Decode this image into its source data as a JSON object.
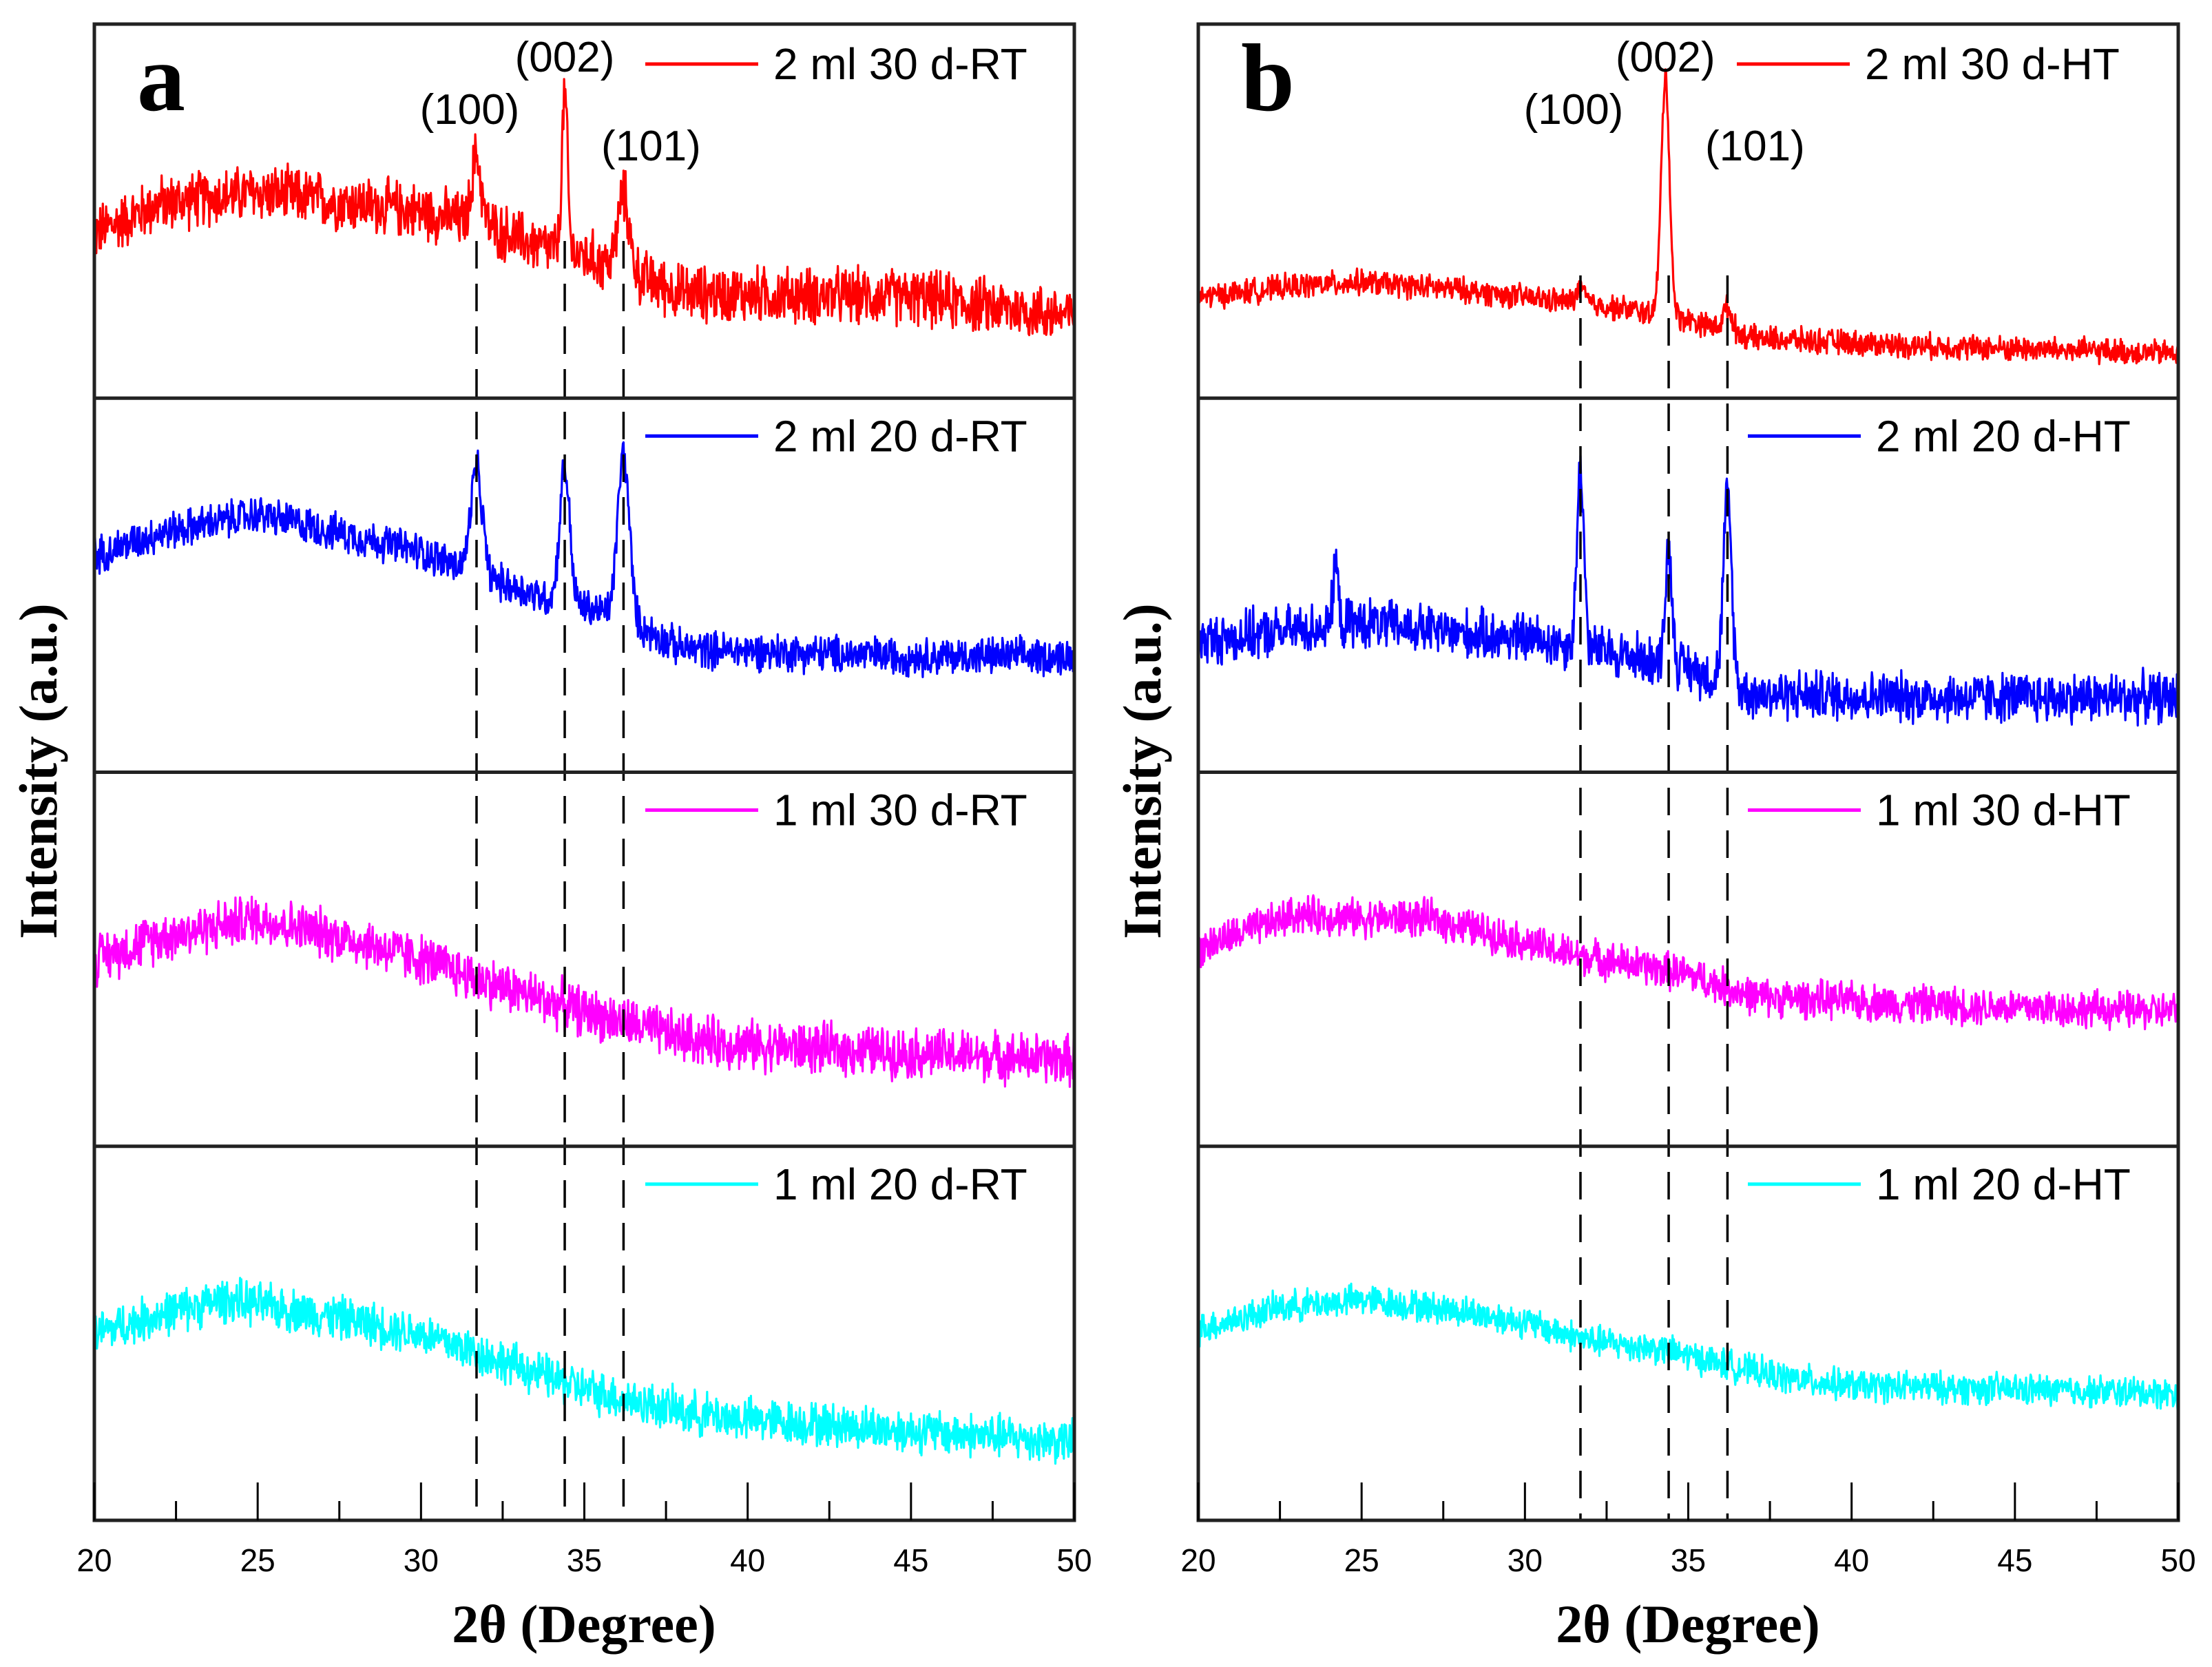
{
  "chart_data": {
    "type": "line",
    "ylabel": "Intensity (a.u.)",
    "xlabel": "2θ (Degree)",
    "xlim": [
      20,
      50
    ],
    "xticks": [
      "20",
      "25",
      "30",
      "35",
      "40",
      "45",
      "50"
    ],
    "ylim_per_strip": [
      0,
      100
    ],
    "grid": false,
    "reference_lines": [
      31.7,
      34.4,
      36.2
    ],
    "panels": [
      {
        "letter": "a",
        "peak_labels": [
          {
            "text": "(100)",
            "x": 31.7
          },
          {
            "text": "(002)",
            "x": 34.4
          },
          {
            "text": "(101)",
            "x": 36.2
          }
        ],
        "series": [
          {
            "name": "2 ml 30 d-RT",
            "color": "#ff0000",
            "noise": 9,
            "baseline": [
              [
                20,
                44
              ],
              [
                22,
                52
              ],
              [
                25,
                55
              ],
              [
                28,
                52
              ],
              [
                30,
                50
              ],
              [
                32,
                46
              ],
              [
                33.5,
                41
              ],
              [
                35,
                38
              ],
              [
                36.8,
                32
              ],
              [
                38,
                28
              ],
              [
                45,
                27
              ],
              [
                50,
                22
              ]
            ],
            "peaks": [
              {
                "x": 31.7,
                "height": 18,
                "width": 0.2
              },
              {
                "x": 34.4,
                "height": 42,
                "width": 0.12
              },
              {
                "x": 36.2,
                "height": 20,
                "width": 0.25
              }
            ]
          },
          {
            "name": "2 ml 20 d-RT",
            "color": "#0000ff",
            "noise": 6,
            "baseline": [
              [
                20,
                58
              ],
              [
                22,
                64
              ],
              [
                25,
                69
              ],
              [
                28,
                63
              ],
              [
                30,
                59
              ],
              [
                32,
                52
              ],
              [
                34,
                46
              ],
              [
                36,
                42
              ],
              [
                38,
                33
              ],
              [
                45,
                31
              ],
              [
                50,
                31
              ]
            ],
            "peaks": [
              {
                "x": 31.7,
                "height": 28,
                "width": 0.25
              },
              {
                "x": 34.4,
                "height": 36,
                "width": 0.22
              },
              {
                "x": 36.2,
                "height": 44,
                "width": 0.25
              }
            ]
          },
          {
            "name": "1 ml 30 d-RT",
            "color": "#ff00ff",
            "noise": 8,
            "baseline": [
              [
                20,
                50
              ],
              [
                22,
                56
              ],
              [
                25,
                61
              ],
              [
                28,
                55
              ],
              [
                30,
                50
              ],
              [
                32,
                44
              ],
              [
                35,
                36
              ],
              [
                38,
                29
              ],
              [
                40,
                27
              ],
              [
                45,
                25
              ],
              [
                50,
                23
              ]
            ],
            "peaks": []
          },
          {
            "name": "1 ml 20 d-RT",
            "color": "#00ffff",
            "noise": 7,
            "baseline": [
              [
                20,
                50
              ],
              [
                22,
                55
              ],
              [
                24,
                59
              ],
              [
                27,
                55
              ],
              [
                30,
                50
              ],
              [
                32,
                44
              ],
              [
                35,
                35
              ],
              [
                38,
                29
              ],
              [
                40,
                27
              ],
              [
                45,
                24
              ],
              [
                50,
                21
              ]
            ],
            "peaks": []
          }
        ]
      },
      {
        "letter": "b",
        "peak_labels": [
          {
            "text": "(100)",
            "x": 31.7
          },
          {
            "text": "(002)",
            "x": 34.3
          },
          {
            "text": "(101)",
            "x": 36.2
          }
        ],
        "series": [
          {
            "name": "2 ml 30 d-HT",
            "color": "#ff0000",
            "noise": 4,
            "baseline": [
              [
                20,
                27
              ],
              [
                23,
                30
              ],
              [
                25,
                31
              ],
              [
                28,
                29
              ],
              [
                30,
                27
              ],
              [
                33,
                24
              ],
              [
                35,
                21
              ],
              [
                37,
                16
              ],
              [
                42,
                14
              ],
              [
                50,
                12
              ]
            ],
            "peaks": [
              {
                "x": 31.7,
                "height": 4,
                "width": 0.2
              },
              {
                "x": 34.3,
                "height": 64,
                "width": 0.18
              },
              {
                "x": 36.2,
                "height": 6,
                "width": 0.2
              }
            ]
          },
          {
            "name": "2 ml 20 d-HT",
            "color": "#0000ff",
            "noise": 8,
            "baseline": [
              [
                20,
                35
              ],
              [
                23,
                38
              ],
              [
                25,
                40
              ],
              [
                28,
                37
              ],
              [
                30,
                36
              ],
              [
                32,
                33
              ],
              [
                35,
                28
              ],
              [
                37,
                21
              ],
              [
                42,
                20
              ],
              [
                50,
                20
              ]
            ],
            "peaks": [
              {
                "x": 24.2,
                "height": 18,
                "width": 0.1
              },
              {
                "x": 31.7,
                "height": 48,
                "width": 0.15
              },
              {
                "x": 34.4,
                "height": 30,
                "width": 0.15
              },
              {
                "x": 36.2,
                "height": 50,
                "width": 0.18
              }
            ]
          },
          {
            "name": "1 ml 30 d-HT",
            "color": "#ff00ff",
            "noise": 6,
            "baseline": [
              [
                20,
                53
              ],
              [
                23,
                62
              ],
              [
                25,
                61
              ],
              [
                27,
                61
              ],
              [
                29,
                57
              ],
              [
                31,
                52
              ],
              [
                33,
                49
              ],
              [
                35,
                46
              ],
              [
                37,
                40
              ],
              [
                42,
                38
              ],
              [
                50,
                36
              ]
            ],
            "peaks": []
          },
          {
            "name": "1 ml 20 d-HT",
            "color": "#00ffff",
            "noise": 5,
            "baseline": [
              [
                20,
                51
              ],
              [
                22.5,
                57
              ],
              [
                25,
                59
              ],
              [
                28,
                56
              ],
              [
                30,
                53
              ],
              [
                32,
                48
              ],
              [
                34,
                46
              ],
              [
                36,
                42
              ],
              [
                38,
                38
              ],
              [
                40,
                36
              ],
              [
                45,
                35
              ],
              [
                50,
                34
              ]
            ],
            "peaks": []
          }
        ]
      }
    ]
  }
}
